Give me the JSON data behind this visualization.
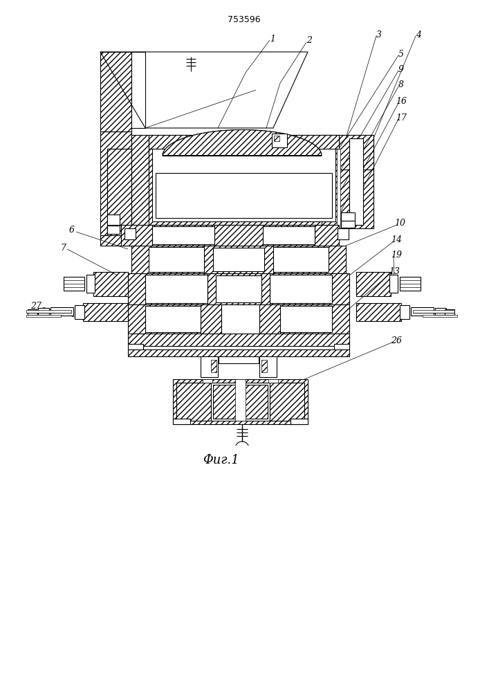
{
  "patent_number": "753596",
  "caption": "Φиг.1",
  "bg_color": "#ffffff",
  "figsize": [
    7.07,
    10.0
  ],
  "dpi": 100
}
